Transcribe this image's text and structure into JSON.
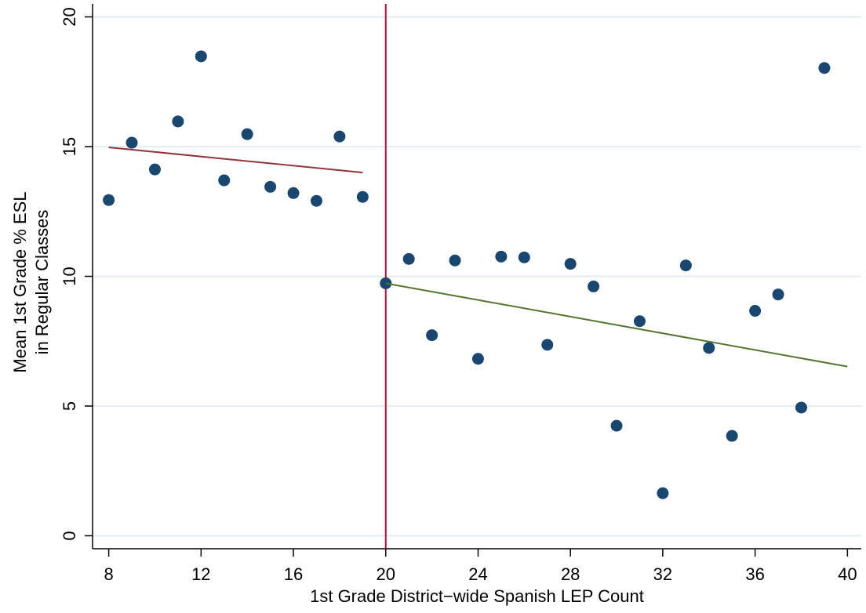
{
  "chart_data": {
    "type": "scatter",
    "xlabel": "1st Grade District−wide Spanish LEP Count",
    "ylabel": [
      "Mean 1st Grade % ESL",
      "in Regular Classes"
    ],
    "xlim": [
      7.3,
      40.6
    ],
    "xticks": [
      8,
      12,
      16,
      20,
      24,
      28,
      32,
      36,
      40
    ],
    "ylim": [
      -0.5,
      20.5
    ],
    "yticks": [
      0,
      5,
      10,
      15,
      20
    ],
    "grid": true,
    "reference_line": {
      "x": 20,
      "color": "#c10534"
    },
    "series": [
      {
        "type": "scatter",
        "color": "#1a476f",
        "x": [
          8,
          9,
          10,
          11,
          12,
          13,
          14,
          15,
          16,
          17,
          18,
          19,
          20,
          21,
          22,
          23,
          24,
          25,
          26,
          27,
          28,
          29,
          30,
          31,
          32,
          33,
          34,
          35,
          36,
          37,
          38,
          39
        ],
        "values": [
          12.94,
          15.15,
          14.12,
          15.97,
          18.48,
          13.7,
          15.48,
          13.45,
          13.21,
          12.91,
          15.39,
          13.06,
          9.73,
          10.67,
          7.73,
          10.61,
          6.82,
          10.76,
          10.73,
          7.36,
          10.48,
          9.61,
          4.24,
          8.27,
          1.64,
          10.42,
          7.24,
          3.85,
          8.67,
          9.3,
          4.94,
          18.03
        ]
      },
      {
        "type": "line",
        "color": "#90353b",
        "x": [
          8,
          19
        ],
        "values": [
          14.97,
          14.0
        ]
      },
      {
        "type": "line",
        "color": "#55752f",
        "x": [
          20,
          40
        ],
        "values": [
          9.73,
          6.52
        ]
      }
    ]
  }
}
